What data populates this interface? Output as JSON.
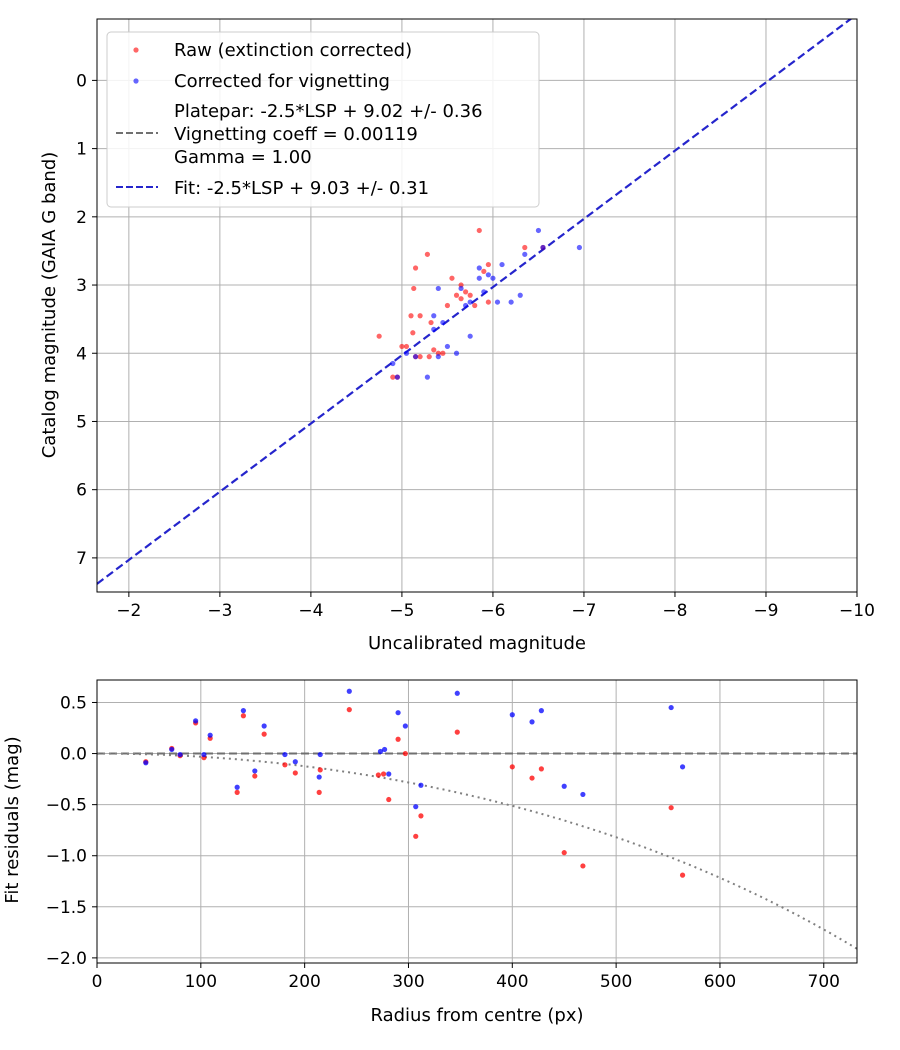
{
  "colors": {
    "raw": "#ff0000",
    "corrected": "#0000ff",
    "fit": "#2525cc",
    "reference": "#707070",
    "grid": "#b0b0b0"
  },
  "chart_data": [
    {
      "type": "scatter",
      "title": "",
      "xlabel": "Uncalibrated magnitude",
      "ylabel": "Catalog magnitude (GAIA G band)",
      "xlim": [
        -1.65,
        -10.0
      ],
      "ylim": [
        7.5,
        -0.9
      ],
      "x_inverted": true,
      "y_inverted": true,
      "xticks": [
        -2,
        -3,
        -4,
        -5,
        -6,
        -7,
        -8,
        -9,
        -10
      ],
      "xtick_labels": [
        "−2",
        "−3",
        "−4",
        "−5",
        "−6",
        "−7",
        "−8",
        "−9",
        "−10"
      ],
      "yticks": [
        0,
        1,
        2,
        3,
        4,
        5,
        6,
        7
      ],
      "ytick_labels": [
        "0",
        "1",
        "2",
        "3",
        "4",
        "5",
        "6",
        "7"
      ],
      "grid": true,
      "legend_position": "top-left",
      "legend": [
        {
          "label": "Raw (extinction corrected)",
          "kind": "marker",
          "color": "#ff0000"
        },
        {
          "label": "Corrected for vignetting",
          "kind": "marker",
          "color": "#0000ff"
        },
        {
          "label": [
            "Platepar: -2.5*LSP + 9.02 +/- 0.36",
            "Vignetting coeff = 0.00119",
            "Gamma = 1.00"
          ],
          "kind": "dashed",
          "color": "#707070"
        },
        {
          "label": "Fit: -2.5*LSP + 9.03 +/- 0.31",
          "kind": "dashed",
          "color": "#2525cc"
        }
      ],
      "series": [
        {
          "name": "Raw (extinction corrected)",
          "color": "#ff0000",
          "points": [
            [
              -4.75,
              3.75
            ],
            [
              -4.9,
              4.35
            ],
            [
              -4.95,
              4.35
            ],
            [
              -5.0,
              3.9
            ],
            [
              -5.05,
              3.9
            ],
            [
              -5.1,
              3.45
            ],
            [
              -5.12,
              3.7
            ],
            [
              -5.13,
              3.05
            ],
            [
              -5.15,
              2.75
            ],
            [
              -5.15,
              4.05
            ],
            [
              -5.2,
              4.05
            ],
            [
              -5.2,
              3.45
            ],
            [
              -5.28,
              2.55
            ],
            [
              -5.3,
              4.05
            ],
            [
              -5.32,
              3.55
            ],
            [
              -5.35,
              3.95
            ],
            [
              -5.4,
              4.0
            ],
            [
              -5.45,
              4.0
            ],
            [
              -5.5,
              3.3
            ],
            [
              -5.55,
              2.9
            ],
            [
              -5.6,
              3.15
            ],
            [
              -5.65,
              3.2
            ],
            [
              -5.65,
              3.0
            ],
            [
              -5.7,
              3.1
            ],
            [
              -5.75,
              3.15
            ],
            [
              -5.8,
              3.3
            ],
            [
              -5.85,
              2.2
            ],
            [
              -5.9,
              2.8
            ],
            [
              -5.95,
              2.7
            ],
            [
              -5.95,
              3.25
            ],
            [
              -6.35,
              2.45
            ],
            [
              -6.55,
              2.45
            ]
          ]
        },
        {
          "name": "Corrected for vignetting",
          "color": "#0000ff",
          "points": [
            [
              -4.9,
              4.15
            ],
            [
              -4.95,
              4.35
            ],
            [
              -5.05,
              4.0
            ],
            [
              -5.15,
              4.05
            ],
            [
              -5.28,
              4.35
            ],
            [
              -5.35,
              3.45
            ],
            [
              -5.35,
              3.65
            ],
            [
              -5.4,
              3.05
            ],
            [
              -5.4,
              4.05
            ],
            [
              -5.45,
              3.55
            ],
            [
              -5.5,
              3.9
            ],
            [
              -5.6,
              4.0
            ],
            [
              -5.65,
              3.05
            ],
            [
              -5.7,
              3.3
            ],
            [
              -5.75,
              3.25
            ],
            [
              -5.75,
              3.75
            ],
            [
              -5.85,
              2.75
            ],
            [
              -5.85,
              2.9
            ],
            [
              -5.9,
              3.1
            ],
            [
              -5.95,
              2.85
            ],
            [
              -6.0,
              2.9
            ],
            [
              -6.05,
              3.25
            ],
            [
              -6.1,
              2.7
            ],
            [
              -6.2,
              3.25
            ],
            [
              -6.3,
              3.15
            ],
            [
              -6.35,
              2.55
            ],
            [
              -6.5,
              2.2
            ],
            [
              -6.55,
              2.45
            ],
            [
              -6.95,
              2.45
            ]
          ]
        }
      ],
      "lines": [
        {
          "name": "Fit: -2.5*LSP + 9.03 +/- 0.31",
          "slope": 1,
          "intercept": 9.03,
          "color": "#2525cc",
          "style": "dashed"
        }
      ]
    },
    {
      "type": "scatter",
      "title": "",
      "xlabel": "Radius from centre (px)",
      "ylabel": "Fit residuals (mag)",
      "xlim": [
        0,
        732
      ],
      "ylim": [
        -2.05,
        0.72
      ],
      "xticks": [
        0,
        100,
        200,
        300,
        400,
        500,
        600,
        700
      ],
      "xtick_labels": [
        "0",
        "100",
        "200",
        "300",
        "400",
        "500",
        "600",
        "700"
      ],
      "yticks": [
        0.5,
        0.0,
        -0.5,
        -1.0,
        -1.5,
        -2.0
      ],
      "ytick_labels": [
        "0.5",
        "0.0",
        "−0.5",
        "−1.0",
        "−1.5",
        "−2.0"
      ],
      "grid": true,
      "series": [
        {
          "name": "Raw (extinction corrected)",
          "color": "#ff0000",
          "points": [
            [
              47,
              -0.08
            ],
            [
              72,
              0.05
            ],
            [
              80,
              -0.02
            ],
            [
              95,
              0.3
            ],
            [
              103,
              -0.04
            ],
            [
              109,
              0.15
            ],
            [
              135,
              -0.38
            ],
            [
              141,
              0.37
            ],
            [
              152,
              -0.22
            ],
            [
              161,
              0.19
            ],
            [
              181,
              -0.11
            ],
            [
              191,
              -0.19
            ],
            [
              214,
              -0.38
            ],
            [
              215,
              -0.16
            ],
            [
              243,
              0.43
            ],
            [
              271,
              -0.21
            ],
            [
              276,
              -0.2
            ],
            [
              281,
              -0.45
            ],
            [
              290,
              0.14
            ],
            [
              297,
              0.0
            ],
            [
              307,
              -0.81
            ],
            [
              312,
              -0.61
            ],
            [
              347,
              0.21
            ],
            [
              400,
              -0.13
            ],
            [
              419,
              -0.24
            ],
            [
              428,
              -0.15
            ],
            [
              450,
              -0.97
            ],
            [
              468,
              -1.1
            ],
            [
              553,
              -0.53
            ],
            [
              564,
              -1.19
            ]
          ]
        },
        {
          "name": "Corrected for vignetting",
          "color": "#0000ff",
          "points": [
            [
              47,
              -0.09
            ],
            [
              72,
              0.04
            ],
            [
              80,
              -0.01
            ],
            [
              95,
              0.32
            ],
            [
              103,
              -0.01
            ],
            [
              109,
              0.18
            ],
            [
              135,
              -0.33
            ],
            [
              141,
              0.42
            ],
            [
              152,
              -0.17
            ],
            [
              161,
              0.27
            ],
            [
              181,
              -0.01
            ],
            [
              191,
              -0.08
            ],
            [
              214,
              -0.23
            ],
            [
              215,
              -0.01
            ],
            [
              243,
              0.61
            ],
            [
              273,
              0.02
            ],
            [
              277,
              0.04
            ],
            [
              281,
              -0.2
            ],
            [
              290,
              0.4
            ],
            [
              297,
              0.27
            ],
            [
              307,
              -0.52
            ],
            [
              312,
              -0.31
            ],
            [
              347,
              0.59
            ],
            [
              400,
              0.38
            ],
            [
              419,
              0.31
            ],
            [
              428,
              0.42
            ],
            [
              450,
              -0.32
            ],
            [
              468,
              -0.4
            ],
            [
              553,
              0.45
            ],
            [
              564,
              -0.13
            ]
          ]
        }
      ],
      "lines": [
        {
          "name": "zero",
          "y": 0.0,
          "color": "#707070",
          "style": "dashed"
        },
        {
          "name": "vignetting",
          "curve": "vignetting",
          "coeff": 0.00119,
          "x_range": [
            0,
            732
          ],
          "color": "#808080",
          "style": "dotted"
        }
      ]
    }
  ]
}
